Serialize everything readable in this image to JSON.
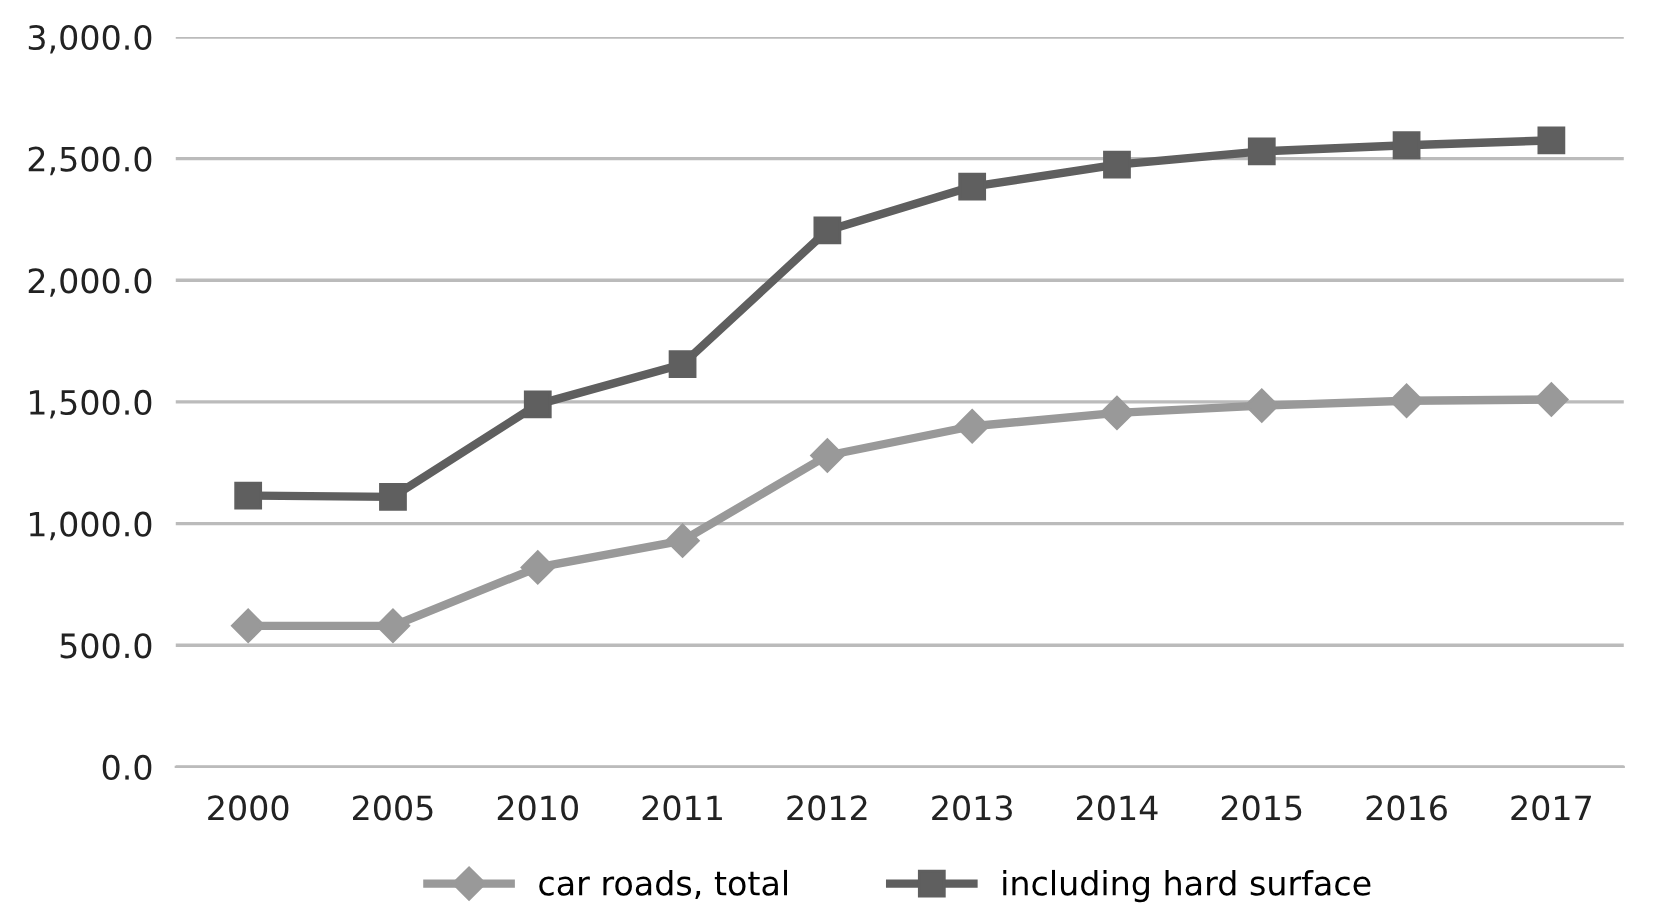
{
  "chart_data": {
    "type": "line",
    "categories": [
      "2000",
      "2005",
      "2010",
      "2011",
      "2012",
      "2013",
      "2014",
      "2015",
      "2016",
      "2017"
    ],
    "series": [
      {
        "name": "car roads, total",
        "color": "#999999",
        "marker": "diamond",
        "values": [
          580,
          580,
          820,
          930,
          1280,
          1400,
          1455,
          1485,
          1505,
          1510
        ]
      },
      {
        "name": "including hard surface",
        "color": "#5f5f5f",
        "marker": "square",
        "values": [
          1115,
          1110,
          1490,
          1655,
          2205,
          2385,
          2475,
          2530,
          2555,
          2575
        ]
      }
    ],
    "ylim": [
      0,
      3000
    ],
    "yticks": [
      {
        "value": 0,
        "label": "0.0"
      },
      {
        "value": 500,
        "label": "500.0"
      },
      {
        "value": 1000,
        "label": "1,000.0"
      },
      {
        "value": 1500,
        "label": "1,500.0"
      },
      {
        "value": 2000,
        "label": "2,000.0"
      },
      {
        "value": 2500,
        "label": "2,500.0"
      },
      {
        "value": 3000,
        "label": "3,000.0"
      }
    ],
    "grid": "y",
    "legend": "bottom",
    "line_style": "solid"
  }
}
